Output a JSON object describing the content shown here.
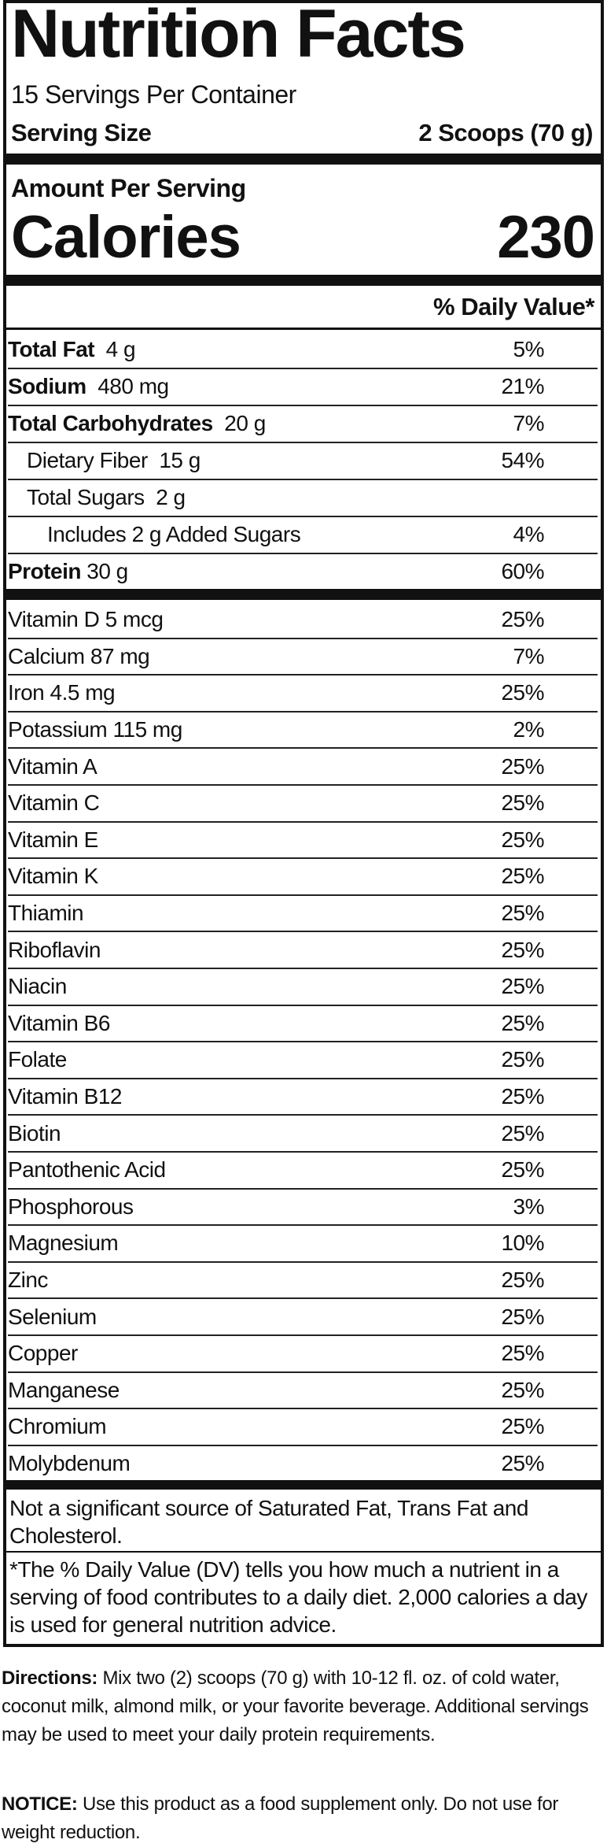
{
  "title": "Nutrition Facts",
  "servings_per_container": "15 Servings Per Container",
  "serving_size": {
    "label": "Serving Size",
    "value": "2 Scoops (70 g)"
  },
  "amount_per_serving": "Amount Per Serving",
  "calories": {
    "label": "Calories",
    "value": "230"
  },
  "daily_value_header": "% Daily Value*",
  "nutrients": [
    {
      "name": "Total Fat",
      "amount": "4 g",
      "dv": "5%"
    },
    {
      "name": "Sodium",
      "amount": "480 mg",
      "dv": "21%"
    },
    {
      "name": "Total Carbohydrates",
      "amount": "20 g",
      "dv": "7%"
    },
    {
      "name": "Dietary Fiber",
      "amount": "15 g",
      "dv": "54%"
    },
    {
      "name": "Total Sugars",
      "amount": "2 g"
    },
    {
      "name": "Includes 2 g Added Sugars",
      "dv": "4%"
    },
    {
      "name": "Protein",
      "amount": "30 g",
      "dv": "60%"
    }
  ],
  "micronutrients": [
    {
      "name": "Vitamin D 5 mcg",
      "dv": "25%"
    },
    {
      "name": "Calcium 87 mg",
      "dv": "7%"
    },
    {
      "name": "Iron 4.5 mg",
      "dv": "25%"
    },
    {
      "name": "Potassium 115 mg",
      "dv": "2%"
    },
    {
      "name": "Vitamin A",
      "dv": "25%"
    },
    {
      "name": "Vitamin C",
      "dv": "25%"
    },
    {
      "name": "Vitamin E",
      "dv": "25%"
    },
    {
      "name": "Vitamin K",
      "dv": "25%"
    },
    {
      "name": "Thiamin",
      "dv": "25%"
    },
    {
      "name": "Riboflavin",
      "dv": "25%"
    },
    {
      "name": "Niacin",
      "dv": "25%"
    },
    {
      "name": "Vitamin B6",
      "dv": "25%"
    },
    {
      "name": "Folate",
      "dv": "25%"
    },
    {
      "name": "Vitamin B12",
      "dv": "25%"
    },
    {
      "name": "Biotin",
      "dv": "25%"
    },
    {
      "name": "Pantothenic Acid",
      "dv": "25%"
    },
    {
      "name": "Phosphorous",
      "dv": "3%"
    },
    {
      "name": "Magnesium",
      "dv": "10%"
    },
    {
      "name": "Zinc",
      "dv": "25%"
    },
    {
      "name": "Selenium",
      "dv": "25%"
    },
    {
      "name": "Copper",
      "dv": "25%"
    },
    {
      "name": "Manganese",
      "dv": "25%"
    },
    {
      "name": "Chromium",
      "dv": "25%"
    },
    {
      "name": "Molybdenum",
      "dv": "25%"
    }
  ],
  "footnotes": [
    "Not a significant source of Saturated Fat, Trans Fat and Cholesterol.",
    "*The % Daily Value (DV) tells you how much a nutrient in a serving of food contributes to a daily diet. 2,000 calories a day is used for general nutrition advice."
  ],
  "directions": {
    "label": "Directions:",
    "text": "Mix two (2) scoops (70 g) with 10-12 fl. oz. of cold water, coconut milk, almond milk, or your favorite beverage. Additional servings may be used to meet your daily protein requirements."
  },
  "notice": {
    "label": "NOTICE:",
    "text": "Use this product as a food supplement only. Do not use for weight reduction."
  }
}
